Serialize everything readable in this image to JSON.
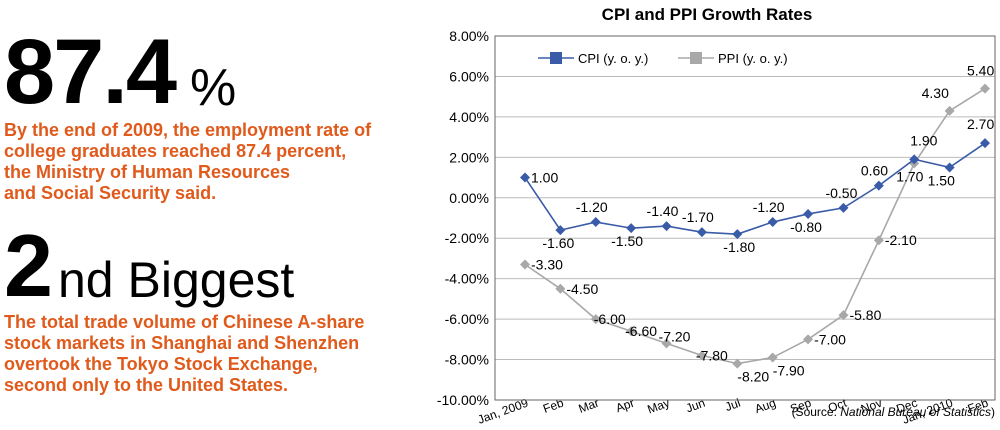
{
  "left_panel": {
    "stat1_number": "87.4",
    "stat1_unit": "%",
    "stat1_lines": [
      "By the end of 2009, the employment rate of",
      "college graduates reached 87.4 percent,",
      "the Ministry of Human Resources",
      "and Social Security said."
    ],
    "stat2_ordinal": "2",
    "stat2_suffix": "nd Biggest",
    "stat2_lines": [
      "The total trade volume of Chinese A-share",
      "stock markets in Shanghai and Shenzhen",
      "overtook the Tokyo Stock Exchange,",
      "second only to the United States."
    ]
  },
  "colors": {
    "accent": "#e05a1c",
    "cpi": "#3a5ba8",
    "ppi": "#a8a8a8",
    "grid": "#bbbbbb",
    "plot_border": "#666666"
  },
  "chart_data": {
    "type": "line",
    "title": "CPI and PPI Growth Rates",
    "categories": [
      "Jan, 2009",
      "Feb",
      "Mar",
      "Apr",
      "May",
      "Jun",
      "Jul",
      "Aug",
      "Sep",
      "Oct",
      "Nov",
      "Dec",
      "Jan, 2010",
      "Feb"
    ],
    "series": [
      {
        "name": "CPI (y. o. y.)",
        "values": [
          1.0,
          -1.6,
          -1.2,
          -1.5,
          -1.4,
          -1.7,
          -1.8,
          -1.2,
          -0.8,
          -0.5,
          0.6,
          1.9,
          1.5,
          2.7
        ],
        "labels": [
          "1.00",
          "-1.60",
          "-1.20",
          "-1.50",
          "-1.40",
          "-1.70",
          "-1.80",
          "-1.20",
          "-0.80",
          "-0.50",
          "0.60",
          "1.90",
          "1.50",
          "2.70"
        ]
      },
      {
        "name": "PPI (y. o. y.)",
        "values": [
          -3.3,
          -4.5,
          -6.0,
          -6.6,
          -7.2,
          -7.8,
          -8.2,
          -7.9,
          -7.0,
          -5.8,
          -2.1,
          1.7,
          4.3,
          5.4
        ],
        "labels": [
          "-3.30",
          "-4.50",
          "-6.00",
          "-6.60",
          "-7.20",
          "-7.80",
          "-8.20",
          "-7.90",
          "-7.00",
          "-5.80",
          "-2.10",
          "1.70",
          "4.30",
          "5.40"
        ]
      }
    ],
    "ylim": [
      -10,
      8
    ],
    "yticks": [
      "8.00%",
      "6.00%",
      "4.00%",
      "2.00%",
      "0.00%",
      "-2.00%",
      "-4.00%",
      "-6.00%",
      "-8.00%",
      "-10.00%"
    ],
    "grid": true,
    "legend": "top-left",
    "source_prefix": "(Source: ",
    "source_name": "National Bureau of Statistics",
    "source_suffix": ")"
  }
}
